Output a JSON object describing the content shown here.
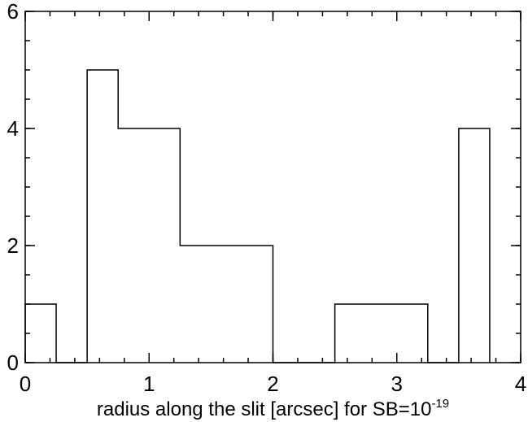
{
  "chart_data": {
    "type": "bar",
    "style": "step-histogram",
    "bin_edges": [
      0,
      0.25,
      0.5,
      0.75,
      1.0,
      1.25,
      1.5,
      1.75,
      2.0,
      2.25,
      2.5,
      2.75,
      3.0,
      3.25,
      3.5,
      3.75
    ],
    "values": [
      1,
      0,
      5,
      4,
      4,
      2,
      2,
      2,
      0,
      0,
      1,
      1,
      1,
      0,
      4
    ],
    "xlim": [
      0,
      4
    ],
    "ylim": [
      0,
      6
    ],
    "xticks": [
      0,
      1,
      2,
      3,
      4
    ],
    "yticks": [
      0,
      2,
      4,
      6
    ],
    "xtick_labels": [
      "0",
      "1",
      "2",
      "3",
      "4"
    ],
    "ytick_labels": [
      "0",
      "2",
      "4",
      "6"
    ],
    "xlabel": {
      "main": "radius along the slit [arcsec] for SB=10",
      "exponent": "-19"
    },
    "ylabel": "",
    "title": "",
    "grid": false,
    "line_color": "#000000"
  }
}
